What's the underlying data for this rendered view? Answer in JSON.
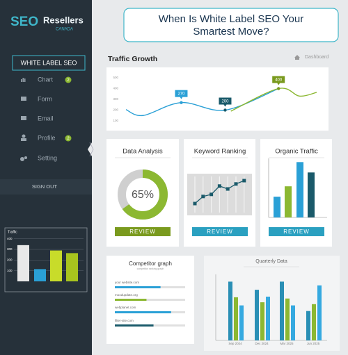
{
  "sidebar": {
    "logo": {
      "brand": "SEO",
      "name": "Resellers",
      "sub": "CANADA"
    },
    "badge": "WHITE LABEL SEO",
    "menu": [
      {
        "label": "Chart",
        "badge": 2
      },
      {
        "label": "Form"
      },
      {
        "label": "Email"
      },
      {
        "label": "Profile",
        "badge": 2
      },
      {
        "label": "Setting"
      }
    ],
    "sign_out": "SIGN OUT",
    "traffic_chart": {
      "type": "bar",
      "title": "Traffic",
      "values": [
        340,
        115,
        290,
        265
      ],
      "colors": [
        "#e8e8e8",
        "#2aa0d6",
        "#c8dc2a",
        "#a8c41e"
      ],
      "ylim": [
        0,
        450
      ],
      "yticks": [
        100,
        200,
        300,
        400
      ],
      "grid": true
    }
  },
  "header": {
    "title_lines": [
      "When Is White Label SEO Your",
      "Smartest Move?"
    ]
  },
  "traffic_growth": {
    "type": "line",
    "title": "Traffic Growth",
    "breadcrumb": "Dashboard",
    "xlim": [
      0,
      100
    ],
    "ylim": [
      100,
      500
    ],
    "yticks": [
      100,
      200,
      300,
      400,
      500
    ],
    "series": [
      {
        "color": "#2aa0d6",
        "x": [
          0,
          9,
          29,
          52,
          80
        ],
        "values": [
          205,
          150,
          270,
          200,
          400
        ],
        "value_labels": [
          null,
          null,
          "270",
          "200",
          null
        ],
        "label_colors": [
          null,
          null,
          "#2aa0d6",
          "#1a5a6a",
          null
        ]
      },
      {
        "color": "#8cb832",
        "x": [
          55,
          80,
          91,
          100
        ],
        "values": [
          190,
          400,
          330,
          365
        ],
        "value_labels": [
          null,
          "400",
          null,
          null
        ],
        "label_colors": [
          null,
          "#7a9a1e",
          null,
          null
        ]
      }
    ]
  },
  "data_analysis": {
    "type": "donut",
    "title": "Data Analysis",
    "value": 65,
    "value_label": "65%",
    "color": "#8cb832",
    "button": "REVIEW",
    "button_color": "#7a9a1e"
  },
  "keyword_ranking": {
    "type": "line",
    "title": "Keyword Ranking",
    "values": [
      20,
      37,
      42,
      62,
      55,
      67,
      75
    ],
    "ylim": [
      0,
      100
    ],
    "color": "#1a5a6a",
    "button": "REVIEW",
    "button_color": "#2aa0c0"
  },
  "organic_traffic": {
    "type": "bar",
    "title": "Organic Traffic",
    "values": [
      36,
      54,
      96,
      78
    ],
    "ylim": [
      0,
      100
    ],
    "colors": [
      "#2aa0d6",
      "#8cb832",
      "#2aa0d6",
      "#1a5a6a"
    ],
    "button": "REVIEW",
    "button_color": "#2aa0c0"
  },
  "competitor_graph": {
    "type": "progress",
    "title": "Competitor graph",
    "subtitle": "competitor ranking graph",
    "items": [
      {
        "label": "your website.com",
        "value": 65,
        "color": "#2aa0d6"
      },
      {
        "label": "moodupdate.org",
        "value": 45,
        "color": "#8cb832"
      },
      {
        "label": "webplanet.com",
        "value": 80,
        "color": "#2aa0d6"
      },
      {
        "label": "filter-site.com",
        "value": 55,
        "color": "#1a5a6a"
      }
    ]
  },
  "quarterly_data": {
    "type": "bar",
    "title": "Quarterly Data",
    "categories": [
      "Sep 2024",
      "Dec 2024",
      "Mar 2025",
      "Jun 2025"
    ],
    "ylim": [
      0,
      100
    ],
    "series": [
      {
        "color": "#2a8fb5",
        "values": [
          94,
          81,
          94,
          47
        ]
      },
      {
        "color": "#8cb832",
        "values": [
          69,
          61,
          67,
          58
        ]
      },
      {
        "color": "#35a9e0",
        "values": [
          56,
          70,
          56,
          88
        ]
      }
    ]
  }
}
